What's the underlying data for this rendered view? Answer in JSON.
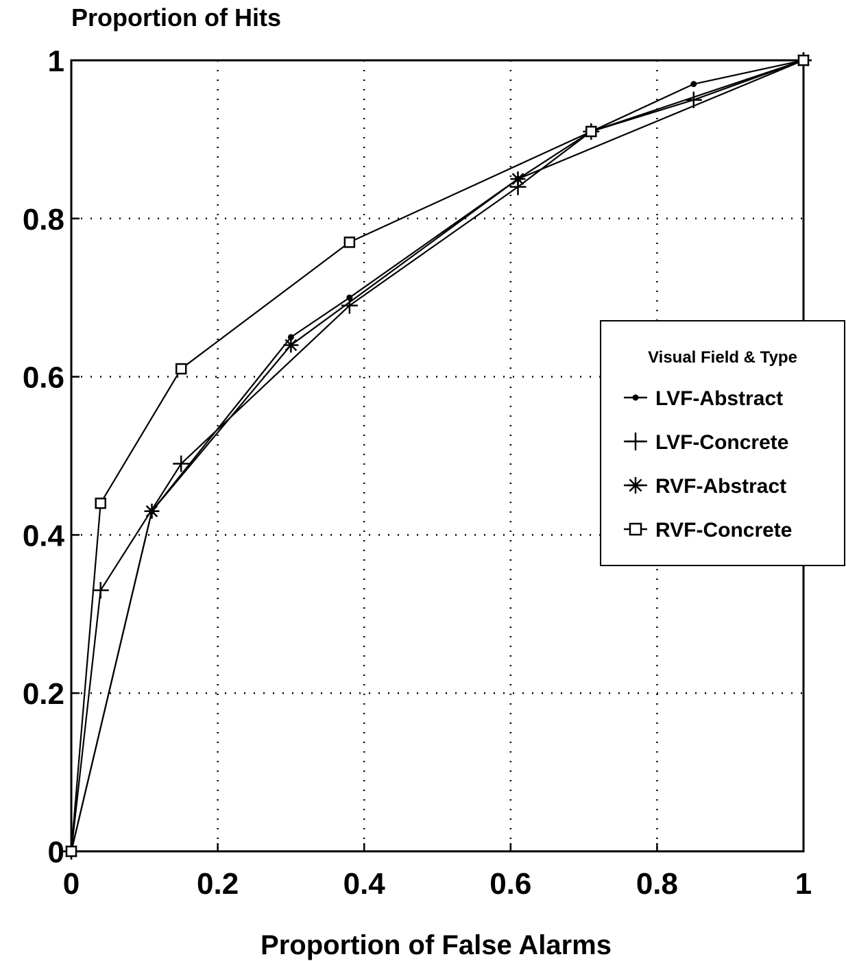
{
  "chart_data": {
    "type": "line",
    "ylabel": "Proportion of Hits",
    "xlabel": "Proportion of False Alarms",
    "xlim": [
      0,
      1
    ],
    "ylim": [
      0,
      1
    ],
    "x_ticks": [
      0,
      0.2,
      0.4,
      0.6,
      0.8,
      1
    ],
    "y_ticks": [
      0,
      0.2,
      0.4,
      0.6,
      0.8,
      1
    ],
    "x_tick_labels": [
      "0",
      "0.2",
      "0.4",
      "0.6",
      "0.8",
      "1"
    ],
    "y_tick_labels": [
      "0",
      "0.2",
      "0.4",
      "0.6",
      "0.8",
      "1"
    ],
    "grid": true,
    "legend": {
      "title": "Visual Field & Type",
      "position": "right"
    },
    "series": [
      {
        "name": "LVF-Abstract",
        "marker": "dot",
        "x": [
          0,
          0.11,
          0.3,
          0.38,
          0.61,
          0.71,
          0.85,
          1.0
        ],
        "y": [
          0,
          0.43,
          0.65,
          0.7,
          0.85,
          0.91,
          0.97,
          1.0
        ]
      },
      {
        "name": "LVF-Concrete",
        "marker": "plus",
        "x": [
          0,
          0.04,
          0.15,
          0.38,
          0.61,
          0.71,
          0.85,
          1.0
        ],
        "y": [
          0,
          0.33,
          0.49,
          0.69,
          0.84,
          0.91,
          0.95,
          1.0
        ]
      },
      {
        "name": "RVF-Abstract",
        "marker": "asterisk",
        "x": [
          0,
          0.11,
          0.3,
          0.61,
          1.0
        ],
        "y": [
          0,
          0.43,
          0.64,
          0.85,
          1.0
        ]
      },
      {
        "name": "RVF-Concrete",
        "marker": "square",
        "x": [
          0,
          0.04,
          0.15,
          0.38,
          0.71,
          1.0
        ],
        "y": [
          0,
          0.44,
          0.61,
          0.77,
          0.91,
          1.0
        ]
      }
    ]
  }
}
